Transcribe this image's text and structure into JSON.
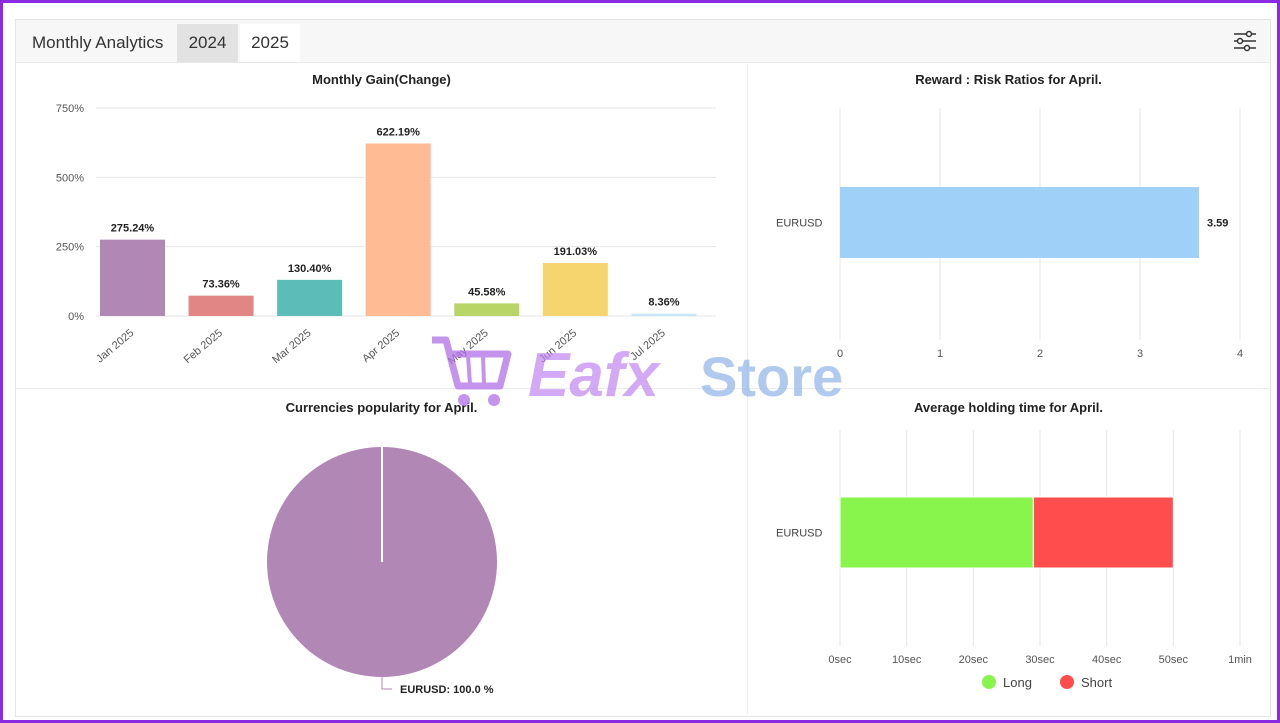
{
  "header": {
    "title": "Monthly Analytics",
    "tabs": [
      "2024",
      "2025"
    ],
    "active_tab": "2025"
  },
  "icons": {
    "settings": "sliders-icon",
    "cart": "cart-icon"
  },
  "watermark": {
    "text_a": "Eafx",
    "text_b": "Store"
  },
  "colors": {
    "long": "#88f54d",
    "short": "#ff4d4d",
    "bar_blue": "#9fd0f7",
    "pie": "#b187b5"
  },
  "chart_data": [
    {
      "type": "bar",
      "title": "Monthly Gain(Change)",
      "categories": [
        "Jan 2025",
        "Feb 2025",
        "Mar 2025",
        "Apr 2025",
        "May 2025",
        "Jun 2025",
        "Jul 2025"
      ],
      "values": [
        275.24,
        73.36,
        130.4,
        622.19,
        45.58,
        191.03,
        8.36
      ],
      "labels": [
        "275.24%",
        "73.36%",
        "130.40%",
        "622.19%",
        "45.58%",
        "191.03%",
        "8.36%"
      ],
      "colors": [
        "#b187b5",
        "#e28585",
        "#5bbcb8",
        "#ffbc94",
        "#b8d667",
        "#f7d56e",
        "#cce6f7"
      ],
      "yticks": [
        "0%",
        "250%",
        "500%",
        "750%"
      ],
      "ylim": [
        0,
        750
      ],
      "grid": true
    },
    {
      "type": "bar",
      "orientation": "horizontal",
      "title": "Reward : Risk Ratios for April.",
      "categories": [
        "EURUSD"
      ],
      "values": [
        3.59
      ],
      "labels": [
        "3.59"
      ],
      "xticks": [
        "0",
        "1",
        "2",
        "3",
        "4"
      ],
      "xlim": [
        0,
        4
      ],
      "grid": true
    },
    {
      "type": "pie",
      "title": "Currencies popularity for April.",
      "slices": [
        {
          "label": "EURUSD",
          "value": 100.0
        }
      ],
      "slice_labels": [
        "EURUSD: 100.0 %"
      ]
    },
    {
      "type": "bar",
      "orientation": "horizontal",
      "stacked": true,
      "title": "Average holding time for April.",
      "categories": [
        "EURUSD"
      ],
      "series": [
        {
          "name": "Long",
          "values": [
            29
          ]
        },
        {
          "name": "Short",
          "values": [
            21
          ]
        }
      ],
      "xticks": [
        "0sec",
        "10sec",
        "20sec",
        "30sec",
        "40sec",
        "50sec",
        "1min"
      ],
      "xlim": [
        0,
        60
      ],
      "legend": "bottom",
      "grid": true
    }
  ]
}
